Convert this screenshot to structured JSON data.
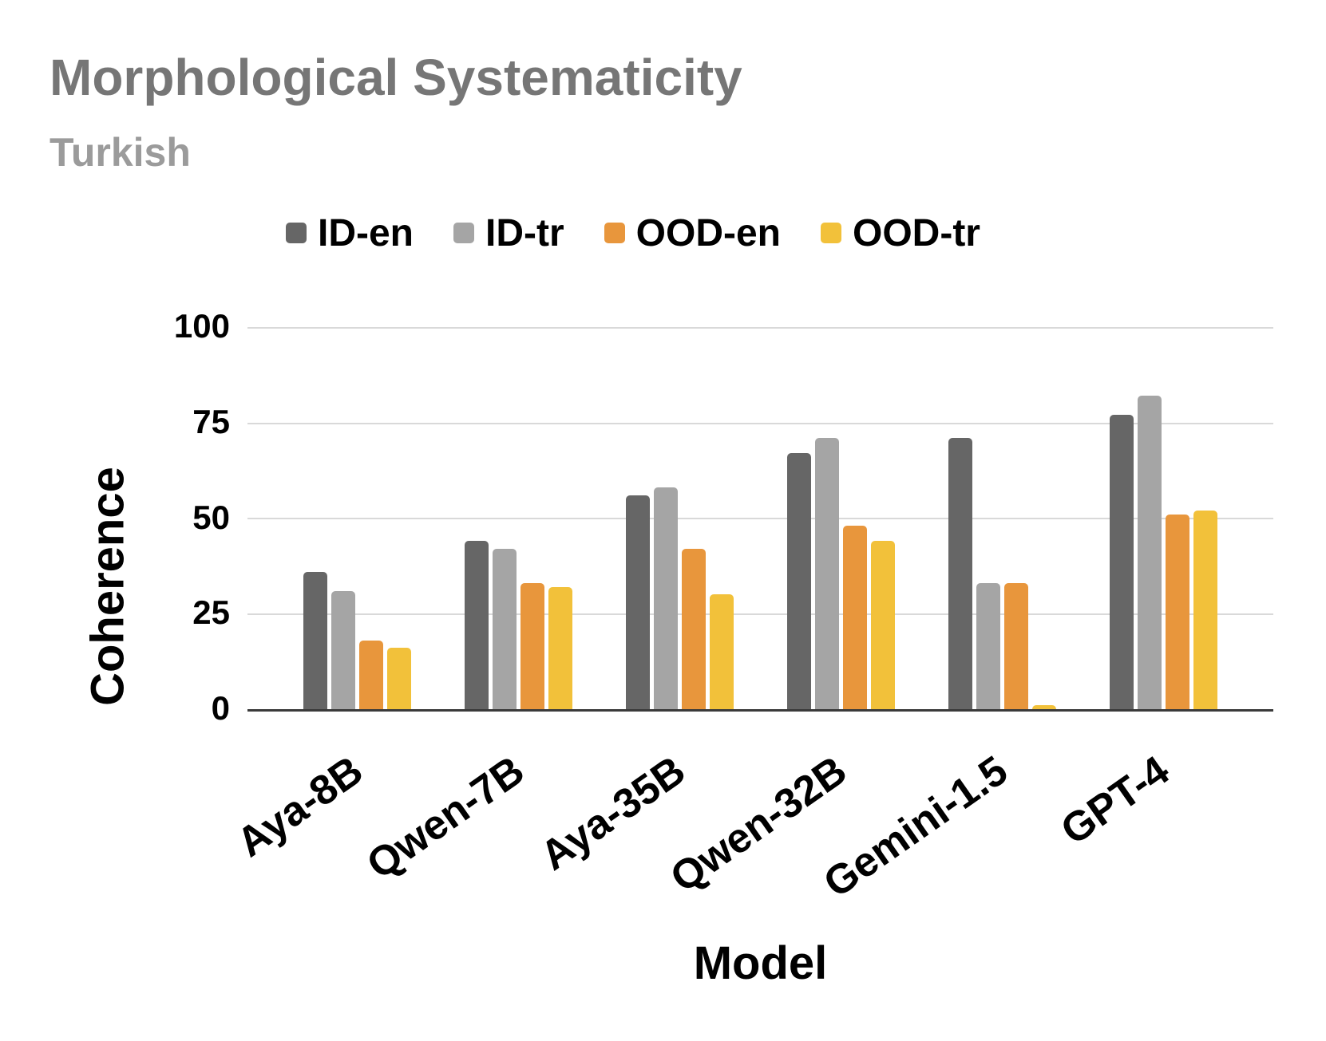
{
  "chart_data": {
    "type": "bar",
    "title": "Morphological Systematicity",
    "subtitle": "Turkish",
    "xlabel": "Model",
    "ylabel": "Coherence",
    "ylim": [
      0,
      100
    ],
    "yticks": [
      0,
      25,
      50,
      75,
      100
    ],
    "grid": true,
    "legend_position": "top-center",
    "categories": [
      "Aya-8B",
      "Qwen-7B",
      "Aya-35B",
      "Qwen-32B",
      "Gemini-1.5",
      "GPT-4"
    ],
    "series": [
      {
        "name": "ID-en",
        "color": "#666666",
        "values": [
          36,
          44,
          56,
          67,
          71,
          77
        ]
      },
      {
        "name": "ID-tr",
        "color": "#a5a5a5",
        "values": [
          31,
          42,
          58,
          71,
          33,
          82
        ]
      },
      {
        "name": "OOD-en",
        "color": "#e8963c",
        "values": [
          18,
          33,
          42,
          48,
          33,
          51
        ]
      },
      {
        "name": "OOD-tr",
        "color": "#f2c13a",
        "values": [
          16,
          32,
          30,
          44,
          1,
          52
        ]
      }
    ]
  },
  "styles": {
    "title_color": "#767676",
    "subtitle_color": "#9b9b9b",
    "gridline_color": "#d9d9d9",
    "axis_line_color": "#3a3a3a",
    "text_color": "#000000",
    "background": "#ffffff"
  }
}
